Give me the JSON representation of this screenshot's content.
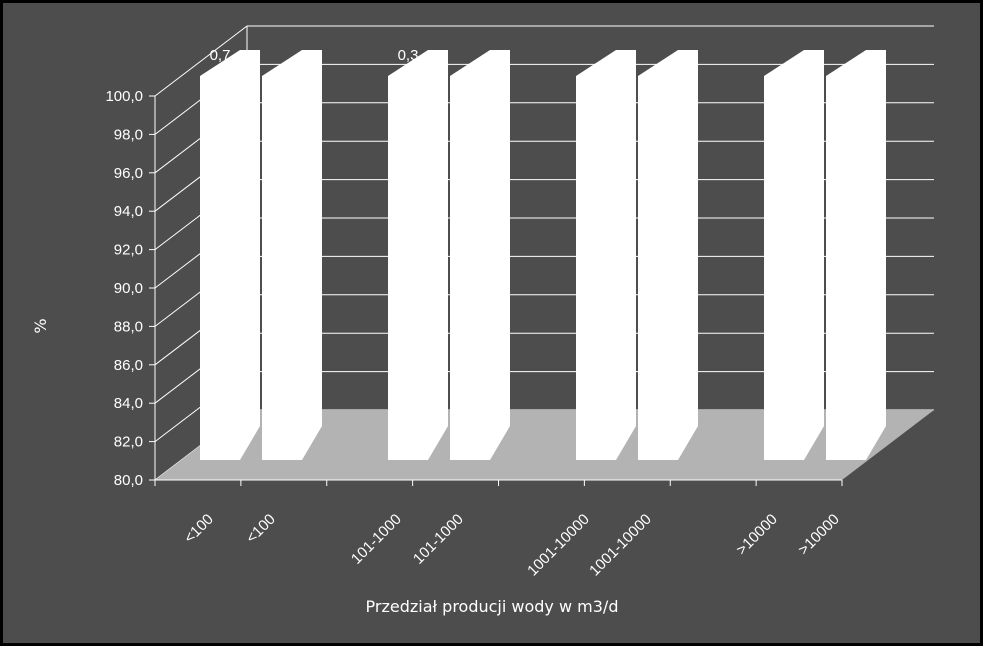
{
  "chart_data": {
    "type": "bar",
    "style": "3d-clustered-column",
    "categories": [
      "<100",
      "<100",
      "101-1000",
      "101-1000",
      "1001-10000",
      "1001-10000",
      ">10000",
      ">10000"
    ],
    "values": [
      100.0,
      100.0,
      100.0,
      100.0,
      100.0,
      100.0,
      100.0,
      100.0
    ],
    "data_labels": [
      "0,7",
      "",
      "0,3",
      "",
      "",
      "",
      "",
      ""
    ],
    "xlabel": "Przedział producji wody w m3/d",
    "ylabel": "%",
    "ylim": [
      80.0,
      100.0
    ],
    "ytick_step": 2.0,
    "ytick_labels": [
      "80,0",
      "82,0",
      "84,0",
      "86,0",
      "88,0",
      "90,0",
      "92,0",
      "94,0",
      "96,0",
      "98,0",
      "100,0"
    ],
    "grid": true,
    "legend": "none",
    "colors": {
      "background": "#4d4d4d",
      "frame": "#000000",
      "floor": "#b3b3b3",
      "bar": "#ffffff",
      "text": "#ffffff",
      "gridline": "#ffffff"
    }
  }
}
